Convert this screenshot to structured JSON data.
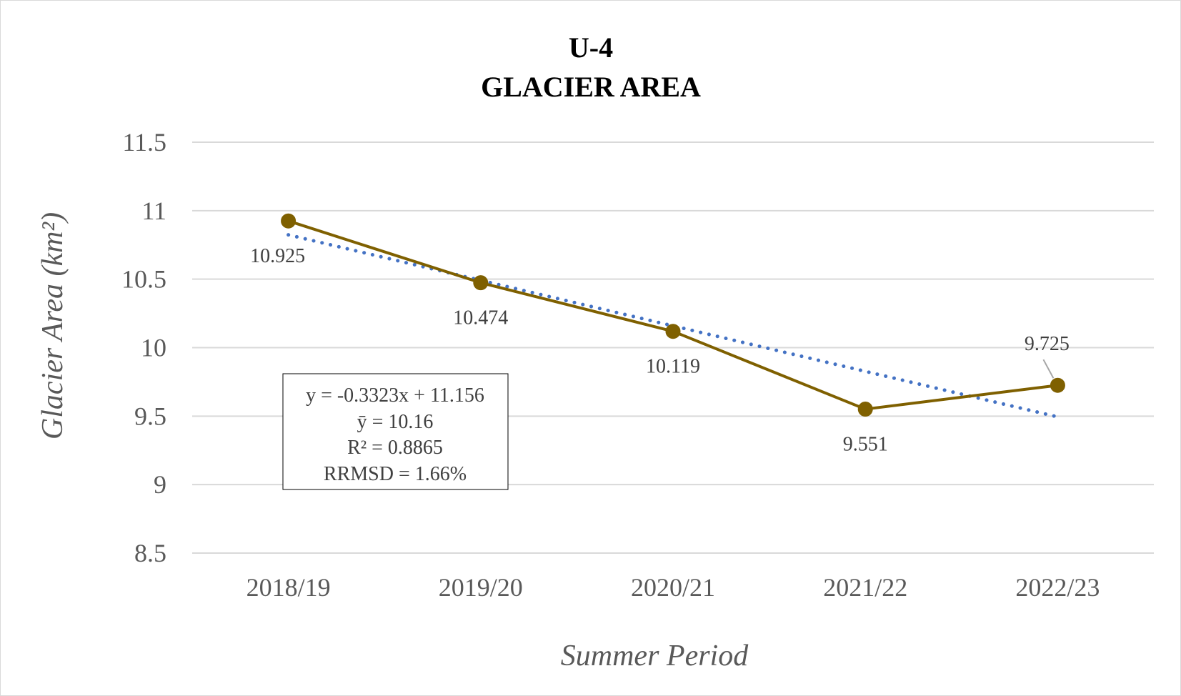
{
  "chart_data": {
    "type": "line",
    "title": [
      "U-4",
      "GLACIER AREA"
    ],
    "xlabel": "Summer Period",
    "ylabel": "Glacier Area (km²)",
    "categories": [
      "2018/19",
      "2019/20",
      "2020/21",
      "2021/22",
      "2022/23"
    ],
    "series": [
      {
        "values": [
          10.925,
          10.474,
          10.119,
          9.551,
          9.725
        ],
        "color": "#7f6000",
        "data_labels": [
          "10.925",
          "10.474",
          "10.119",
          "9.551",
          "9.725"
        ]
      }
    ],
    "trendline": {
      "type": "linear",
      "slope": -0.3323,
      "intercept": 11.156,
      "color": "#4472c4",
      "style": "dotted"
    },
    "ylim": [
      8.5,
      11.5
    ],
    "yticks": [
      "8.5",
      "9",
      "9.5",
      "10",
      "10.5",
      "11",
      "11.5"
    ],
    "grid": true,
    "legend": "none",
    "stats_box": [
      "y = -0.3323x + 11.156",
      "ȳ = 10.16",
      "R² = 0.8865",
      "RRMSD = 1.66%"
    ],
    "gridline_color": "#d9d9d9"
  }
}
